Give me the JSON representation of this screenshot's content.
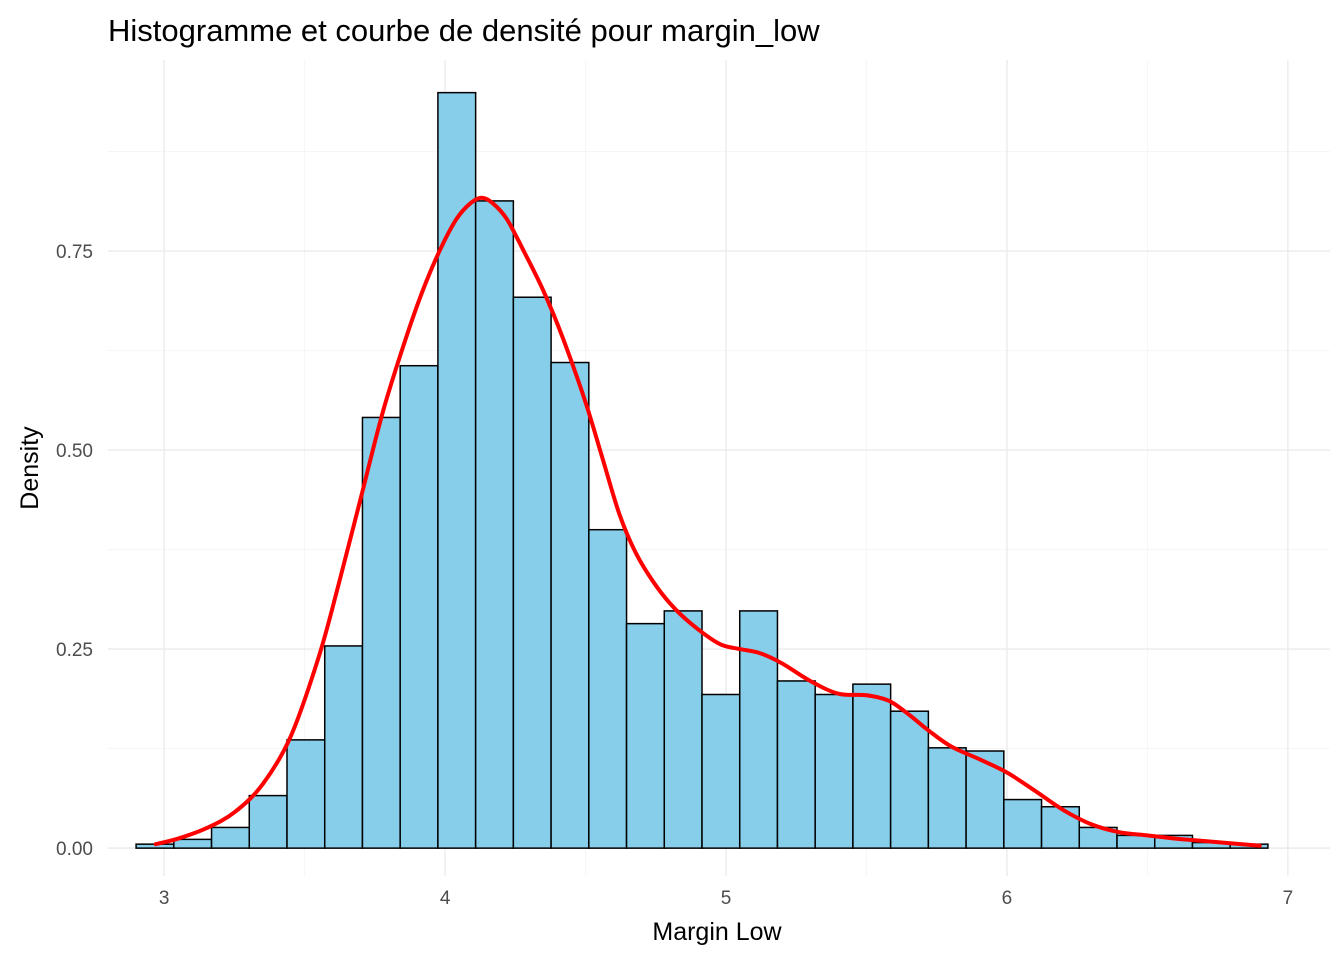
{
  "chart_data": {
    "type": "histogram",
    "title": "Histogramme et courbe de densité pour margin_low",
    "xlabel": "Margin Low",
    "ylabel": "Density",
    "xlim": [
      2.8,
      7.15
    ],
    "ylim": [
      -0.035,
      0.99
    ],
    "x_ticks": [
      3,
      4,
      5,
      6,
      7
    ],
    "x_tick_labels": [
      "3",
      "4",
      "5",
      "6",
      "7"
    ],
    "y_ticks": [
      0,
      0.25,
      0.5,
      0.75
    ],
    "y_tick_labels": [
      "0.00",
      "0.25",
      "0.50",
      "0.75"
    ],
    "grid": true,
    "bins": {
      "start": 2.9,
      "width": 0.1343,
      "values": [
        0.005,
        0.011,
        0.026,
        0.066,
        0.136,
        0.254,
        0.541,
        0.606,
        0.949,
        0.813,
        0.692,
        0.61,
        0.4,
        0.282,
        0.298,
        0.193,
        0.298,
        0.21,
        0.193,
        0.206,
        0.172,
        0.126,
        0.122,
        0.061,
        0.052,
        0.026,
        0.016,
        0.016,
        0.007,
        0.005
      ],
      "fill_color": "#87ceeb",
      "border_color": "#000000"
    },
    "density": {
      "color": "#ff0000",
      "x": [
        2.97,
        3.05,
        3.15,
        3.25,
        3.35,
        3.45,
        3.55,
        3.62,
        3.7,
        3.78,
        3.86,
        3.92,
        3.98,
        4.04,
        4.09,
        4.13,
        4.17,
        4.22,
        4.28,
        4.35,
        4.42,
        4.5,
        4.56,
        4.62,
        4.68,
        4.75,
        4.82,
        4.9,
        4.98,
        5.05,
        5.12,
        5.2,
        5.3,
        5.4,
        5.5,
        5.58,
        5.65,
        5.72,
        5.8,
        5.9,
        6.0,
        6.1,
        6.2,
        6.3,
        6.4,
        6.5,
        6.6,
        6.7,
        6.8,
        6.9
      ],
      "y": [
        0.005,
        0.012,
        0.025,
        0.045,
        0.08,
        0.14,
        0.24,
        0.33,
        0.44,
        0.55,
        0.64,
        0.7,
        0.75,
        0.79,
        0.81,
        0.817,
        0.81,
        0.79,
        0.75,
        0.7,
        0.64,
        0.56,
        0.49,
        0.42,
        0.37,
        0.33,
        0.3,
        0.275,
        0.256,
        0.25,
        0.245,
        0.232,
        0.21,
        0.194,
        0.192,
        0.185,
        0.168,
        0.148,
        0.128,
        0.112,
        0.095,
        0.072,
        0.048,
        0.03,
        0.02,
        0.016,
        0.012,
        0.009,
        0.006,
        0.003
      ]
    }
  }
}
